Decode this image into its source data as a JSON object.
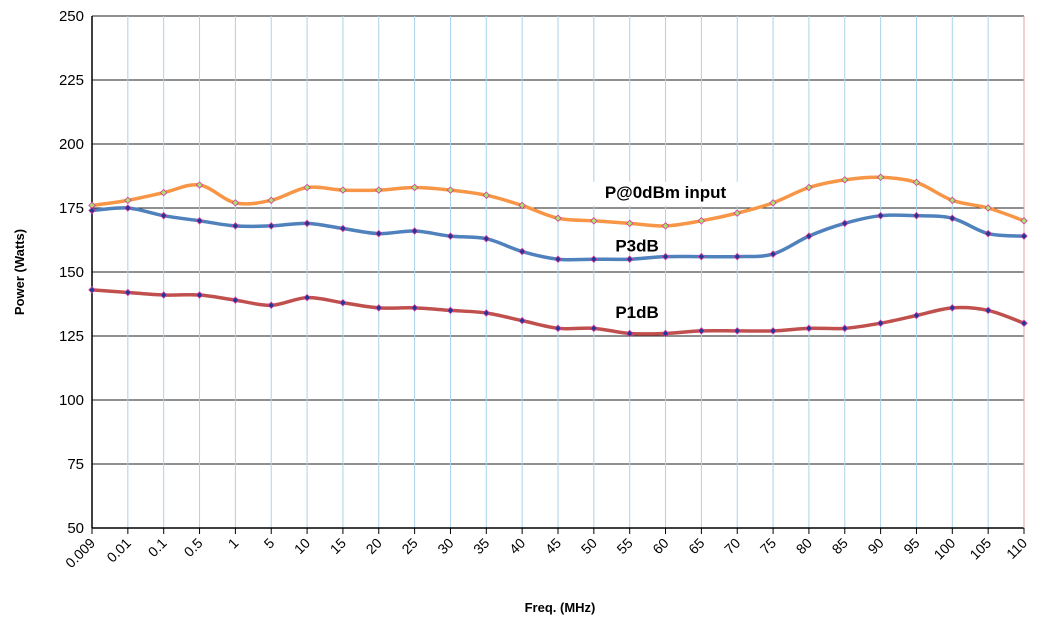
{
  "chart_data": {
    "type": "line",
    "title": "",
    "xlabel": "Freq. (MHz)",
    "ylabel": "Power (Watts)",
    "ylim": [
      50,
      250
    ],
    "yticks": [
      "50",
      "75",
      "100",
      "125",
      "150",
      "175",
      "200",
      "225",
      "250"
    ],
    "categories": [
      "0.009",
      "0.01",
      "0.1",
      "0.5",
      "1",
      "5",
      "10",
      "15",
      "20",
      "25",
      "30",
      "35",
      "40",
      "45",
      "50",
      "55",
      "60",
      "65",
      "70",
      "75",
      "80",
      "85",
      "90",
      "95",
      "100",
      "105",
      "110"
    ],
    "grid": true,
    "series": [
      {
        "name": "P@0dBm input",
        "color": "#f79646",
        "values": [
          176,
          178,
          181,
          184,
          177,
          178,
          183,
          182,
          182,
          183,
          182,
          180,
          176,
          171,
          170,
          169,
          168,
          170,
          173,
          177,
          183,
          186,
          187,
          185,
          178,
          175,
          170
        ]
      },
      {
        "name": "P3dB",
        "color": "#4f81bd",
        "values": [
          174,
          175,
          172,
          170,
          168,
          168,
          169,
          167,
          165,
          166,
          164,
          163,
          158,
          155,
          155,
          155,
          156,
          156,
          156,
          157,
          164,
          169,
          172,
          172,
          171,
          165,
          164
        ]
      },
      {
        "name": "P1dB",
        "color": "#c0504d",
        "values": [
          143,
          142,
          141,
          141,
          139,
          137,
          140,
          138,
          136,
          136,
          135,
          134,
          131,
          128,
          128,
          126,
          126,
          127,
          127,
          127,
          128,
          128,
          130,
          133,
          136,
          135,
          130
        ]
      }
    ]
  }
}
